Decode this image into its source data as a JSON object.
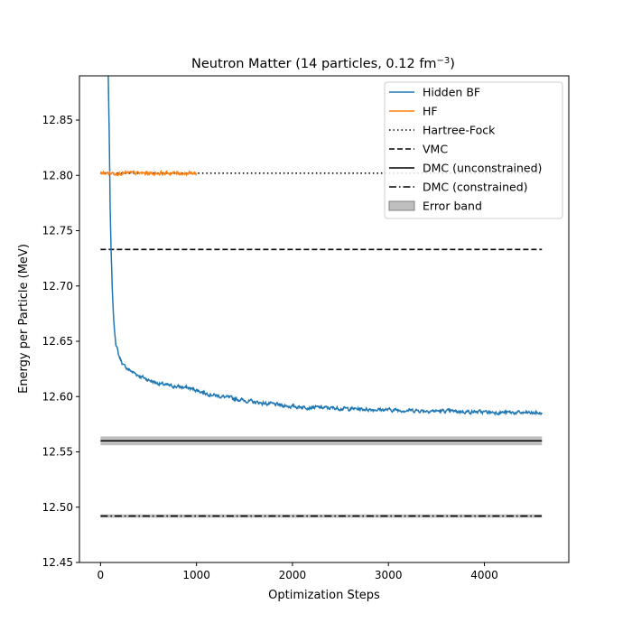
{
  "chart_data": {
    "type": "line",
    "title_main": "Neutron Matter (14 particles, 0.12 fm",
    "title_sup": "−3",
    "title_end": ")",
    "xlabel": "Optimization Steps",
    "ylabel": "Energy per Particle (MeV)",
    "xlim": [
      -220,
      4880
    ],
    "ylim": [
      12.45,
      12.89
    ],
    "x_ticks": [
      0,
      1000,
      2000,
      3000,
      4000
    ],
    "y_ticks": [
      12.45,
      12.5,
      12.55,
      12.6,
      12.65,
      12.7,
      12.75,
      12.8,
      12.85
    ],
    "x_tick_labels": [
      "0",
      "1000",
      "2000",
      "3000",
      "4000"
    ],
    "y_tick_labels": [
      "12.45",
      "12.50",
      "12.55",
      "12.60",
      "12.65",
      "12.70",
      "12.75",
      "12.80",
      "12.85"
    ],
    "legend_position": "top-right",
    "series": [
      {
        "name": "Hidden BF",
        "color": "#1f77b4",
        "style": "solid-noisy",
        "noise": 0.0025,
        "points": [
          [
            80,
            12.89
          ],
          [
            90,
            12.84
          ],
          [
            100,
            12.77
          ],
          [
            110,
            12.73
          ],
          [
            125,
            12.69
          ],
          [
            140,
            12.665
          ],
          [
            160,
            12.648
          ],
          [
            190,
            12.637
          ],
          [
            240,
            12.628
          ],
          [
            300,
            12.624
          ],
          [
            400,
            12.619
          ],
          [
            500,
            12.615
          ],
          [
            600,
            12.612
          ],
          [
            700,
            12.61
          ],
          [
            800,
            12.609
          ],
          [
            900,
            12.608
          ],
          [
            1000,
            12.606
          ],
          [
            1100,
            12.603
          ],
          [
            1200,
            12.601
          ],
          [
            1400,
            12.598
          ],
          [
            1600,
            12.595
          ],
          [
            1800,
            12.593
          ],
          [
            2000,
            12.591
          ],
          [
            2300,
            12.59
          ],
          [
            2600,
            12.589
          ],
          [
            3000,
            12.588
          ],
          [
            3500,
            12.587
          ],
          [
            4000,
            12.586
          ],
          [
            4600,
            12.585
          ]
        ]
      },
      {
        "name": "HF",
        "color": "#ff7f0e",
        "style": "solid-noisy",
        "noise": 0.0025,
        "points": [
          [
            0,
            12.802
          ],
          [
            1000,
            12.802
          ]
        ]
      },
      {
        "name": "Hartree-Fock",
        "color": "#000000",
        "style": "dotted",
        "value": 12.802,
        "x_range": [
          0,
          4600
        ]
      },
      {
        "name": "VMC",
        "color": "#000000",
        "style": "dashed",
        "value": 12.733,
        "x_range": [
          0,
          4600
        ]
      },
      {
        "name": "DMC (unconstrained)",
        "color": "#000000",
        "style": "solid",
        "value": 12.56,
        "x_range": [
          0,
          4600
        ]
      },
      {
        "name": "DMC (constrained)",
        "color": "#000000",
        "style": "dashdot",
        "value": 12.492,
        "x_range": [
          0,
          4600
        ]
      }
    ],
    "bands": [
      {
        "label": "Error band",
        "color": "#808080",
        "low": 12.556,
        "high": 12.564,
        "x_range": [
          0,
          4600
        ]
      },
      {
        "label": "",
        "color": "#808080",
        "low": 12.4905,
        "high": 12.4935,
        "x_range": [
          0,
          4600
        ]
      }
    ]
  }
}
